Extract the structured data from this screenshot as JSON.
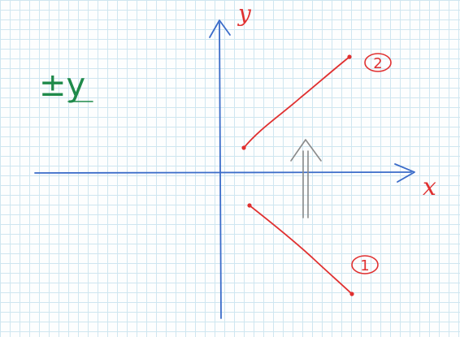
{
  "colors": {
    "grid": "#cfe6f0",
    "axis": "#3b6cc9",
    "segment": "#e03030",
    "note": "#1f8a4a",
    "arrow": "#8a8a8a"
  },
  "labels": {
    "x_axis": "x",
    "y_axis": "y",
    "segment_1": "1",
    "segment_2": "2",
    "note": "±y"
  },
  "icons": {
    "shift_arrow": "up-arrow-icon"
  }
}
